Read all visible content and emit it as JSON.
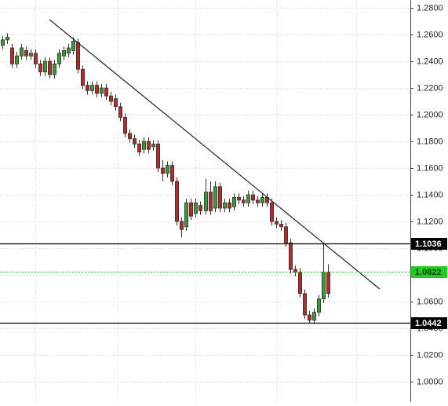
{
  "chart_data": {
    "type": "candlestick",
    "open": [
      1.252,
      1.256,
      1.25,
      1.238,
      1.244,
      1.248,
      1.244,
      1.246,
      1.238,
      1.232,
      1.24,
      1.23,
      1.238,
      1.244,
      1.246,
      1.248,
      1.254,
      1.234,
      1.222,
      1.218,
      1.222,
      1.216,
      1.22,
      1.214,
      1.212,
      1.206,
      1.198,
      1.186,
      1.182,
      1.178,
      1.174,
      1.18,
      1.176,
      1.178,
      1.16,
      1.156,
      1.162,
      1.15,
      1.12,
      1.116,
      1.134,
      1.126,
      1.132,
      1.128,
      1.142,
      1.13,
      1.146,
      1.13,
      1.134,
      1.131,
      1.138,
      1.136,
      1.134,
      1.14,
      1.136,
      1.134,
      1.138,
      1.134,
      1.12,
      1.118,
      1.116,
      1.104,
      1.084,
      1.082,
      1.066,
      1.05,
      1.046,
      1.052,
      1.062,
      1.082
    ],
    "high": [
      1.259,
      1.261,
      1.253,
      1.247,
      1.253,
      1.251,
      1.249,
      1.249,
      1.241,
      1.243,
      1.243,
      1.241,
      1.249,
      1.251,
      1.253,
      1.258,
      1.257,
      1.237,
      1.225,
      1.225,
      1.225,
      1.223,
      1.223,
      1.217,
      1.215,
      1.209,
      1.201,
      1.189,
      1.185,
      1.181,
      1.183,
      1.183,
      1.181,
      1.181,
      1.166,
      1.165,
      1.165,
      1.153,
      1.123,
      1.137,
      1.137,
      1.137,
      1.135,
      1.152,
      1.15,
      1.15,
      1.149,
      1.137,
      1.137,
      1.141,
      1.141,
      1.139,
      1.143,
      1.143,
      1.139,
      1.141,
      1.141,
      1.137,
      1.123,
      1.121,
      1.119,
      1.107,
      1.087,
      1.085,
      1.069,
      1.053,
      1.055,
      1.065,
      1.103,
      1.088
    ],
    "low": [
      1.249,
      1.253,
      1.235,
      1.235,
      1.241,
      1.241,
      1.241,
      1.235,
      1.229,
      1.229,
      1.227,
      1.227,
      1.235,
      1.241,
      1.243,
      1.245,
      1.231,
      1.219,
      1.215,
      1.215,
      1.213,
      1.213,
      1.211,
      1.207,
      1.203,
      1.195,
      1.183,
      1.179,
      1.175,
      1.169,
      1.171,
      1.171,
      1.173,
      1.157,
      1.15,
      1.153,
      1.147,
      1.117,
      1.108,
      1.113,
      1.121,
      1.123,
      1.125,
      1.125,
      1.125,
      1.127,
      1.127,
      1.127,
      1.127,
      1.128,
      1.133,
      1.131,
      1.131,
      1.133,
      1.131,
      1.131,
      1.131,
      1.117,
      1.115,
      1.113,
      1.101,
      1.081,
      1.079,
      1.063,
      1.047,
      1.044,
      1.043,
      1.049,
      1.059,
      1.063
    ],
    "close": [
      1.256,
      1.258,
      1.238,
      1.244,
      1.25,
      1.244,
      1.246,
      1.238,
      1.232,
      1.24,
      1.23,
      1.238,
      1.246,
      1.248,
      1.25,
      1.255,
      1.234,
      1.222,
      1.218,
      1.222,
      1.216,
      1.22,
      1.214,
      1.21,
      1.206,
      1.198,
      1.186,
      1.182,
      1.178,
      1.172,
      1.18,
      1.174,
      1.178,
      1.16,
      1.156,
      1.162,
      1.15,
      1.12,
      1.114,
      1.134,
      1.124,
      1.134,
      1.128,
      1.142,
      1.128,
      1.146,
      1.13,
      1.134,
      1.13,
      1.138,
      1.136,
      1.134,
      1.14,
      1.136,
      1.134,
      1.138,
      1.134,
      1.12,
      1.118,
      1.116,
      1.104,
      1.084,
      1.082,
      1.066,
      1.05,
      1.046,
      1.052,
      1.062,
      1.082,
      1.066
    ],
    "up_color": "#3a9a3a",
    "down_color": "#b52b2b",
    "xlim": [
      -0.5,
      86.5
    ],
    "xgrid": [
      7,
      24.5,
      41,
      58,
      75
    ],
    "ylim": [
      0.9847,
      1.2859
    ],
    "yticks": [
      {
        "value": 1.28,
        "label": "1.2800"
      },
      {
        "value": 1.26,
        "label": "1.2600"
      },
      {
        "value": 1.24,
        "label": "1.2400"
      },
      {
        "value": 1.22,
        "label": "1.2200"
      },
      {
        "value": 1.2,
        "label": "1.2000"
      },
      {
        "value": 1.18,
        "label": "1.1800"
      },
      {
        "value": 1.16,
        "label": "1.1600"
      },
      {
        "value": 1.14,
        "label": "1.1400"
      },
      {
        "value": 1.12,
        "label": "1.1200"
      },
      {
        "value": 1.1,
        "label": "1.1000"
      },
      {
        "value": 1.08,
        "label": "1.0800"
      },
      {
        "value": 1.06,
        "label": "1.0600"
      },
      {
        "value": 1.04,
        "label": "1.0400"
      },
      {
        "value": 1.02,
        "label": "1.0200"
      },
      {
        "value": 1,
        "label": "1.0000"
      }
    ],
    "grid": true,
    "trendline": {
      "x": [
        10,
        80
      ],
      "y": [
        1.2712,
        1.0694
      ],
      "color": "#222222"
    },
    "levels": [
      {
        "value": 1.1036,
        "color": "#000000",
        "style": "solid"
      },
      {
        "value": 1.0822,
        "color": "#22cc22",
        "style": "dotted"
      },
      {
        "value": 1.0442,
        "color": "#000000",
        "style": "solid"
      }
    ]
  }
}
